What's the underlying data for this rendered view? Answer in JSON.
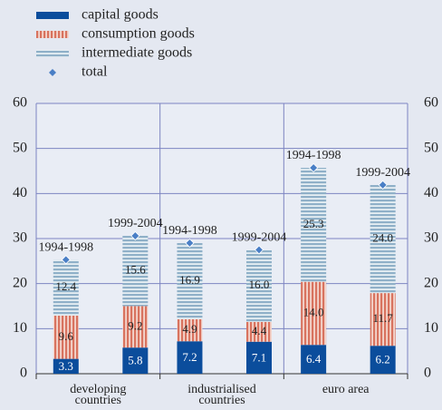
{
  "chart_data": {
    "type": "stacked_bar",
    "categories": [
      "1994-1998",
      "1999-2004",
      "1994-1998",
      "1999-2004",
      "1994-1998",
      "1999-2004"
    ],
    "group_labels": [
      [
        "developing",
        "countries"
      ],
      [
        "industrialised",
        "countries"
      ],
      [
        "euro area"
      ]
    ],
    "series": [
      {
        "name": "capital goods",
        "color": "#0b4d9c",
        "values": [
          3.3,
          5.8,
          7.2,
          7.1,
          6.4,
          6.2
        ],
        "value_labels": [
          "3.3",
          "5.8",
          "7.2",
          "7.1",
          "6.4",
          "6.2"
        ]
      },
      {
        "name": "consumption goods",
        "color": "#d8735f",
        "values": [
          9.6,
          9.2,
          4.9,
          4.4,
          14.0,
          11.7
        ],
        "value_labels": [
          "9.6",
          "9.2",
          "4.9",
          "4.4",
          "14.0",
          "11.7"
        ]
      },
      {
        "name": "intermediate goods",
        "color": "#8fb0c8",
        "values": [
          12.4,
          15.6,
          16.9,
          16.0,
          25.3,
          24.0
        ],
        "value_labels": [
          "12.4",
          "15.6",
          "16.9",
          "16.0",
          "25.3",
          "24.0"
        ]
      }
    ],
    "total": {
      "name": "total",
      "color": "#4a7fc6",
      "values": [
        25.3,
        30.6,
        29.0,
        27.5,
        45.7,
        41.9
      ]
    },
    "ylim": [
      0,
      60
    ],
    "yticks": [
      0,
      10,
      20,
      30,
      40,
      50,
      60
    ],
    "grid": true
  }
}
